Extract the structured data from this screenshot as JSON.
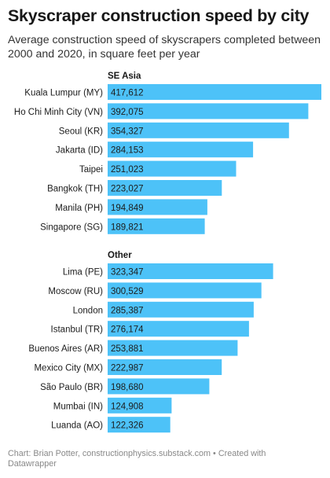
{
  "header": {
    "title": "Skyscraper construction speed by city",
    "subtitle": "Average construction speed of skyscrapers completed between 2000 and 2020, in square feet per year"
  },
  "footer": {
    "credit": "Chart: Brian Potter, constructionphysics.substack.com • Created with Datawrapper"
  },
  "colors": {
    "bar": "#4dc2f8",
    "value_text": "#1c1c1c",
    "label_text": "#1c1c1c"
  },
  "chart_data": {
    "type": "bar",
    "orientation": "horizontal",
    "title": "Skyscraper construction speed by city",
    "subtitle": "Average construction speed of skyscrapers completed between 2000 and 2020, in square feet per year",
    "xlim": [
      0,
      417612
    ],
    "groups": [
      {
        "name": "SE Asia",
        "categories": [
          "Kuala Lumpur (MY)",
          "Ho Chi Minh City (VN)",
          "Seoul (KR)",
          "Jakarta (ID)",
          "Taipei",
          "Bangkok (TH)",
          "Manila (PH)",
          "Singapore (SG)"
        ],
        "values": [
          417612,
          392075,
          354327,
          284153,
          251023,
          223027,
          194849,
          189821
        ],
        "labels": [
          "417,612",
          "392,075",
          "354,327",
          "284,153",
          "251,023",
          "223,027",
          "194,849",
          "189,821"
        ]
      },
      {
        "name": "Other",
        "categories": [
          "Lima (PE)",
          "Moscow (RU)",
          "London",
          "Istanbul (TR)",
          "Buenos Aires (AR)",
          "Mexico City (MX)",
          "São Paulo (BR)",
          "Mumbai (IN)",
          "Luanda (AO)"
        ],
        "values": [
          323347,
          300529,
          285387,
          276174,
          253881,
          222987,
          198680,
          124908,
          122326
        ],
        "labels": [
          "323,347",
          "300,529",
          "285,387",
          "276,174",
          "253,881",
          "222,987",
          "198,680",
          "124,908",
          "122,326"
        ]
      }
    ]
  }
}
